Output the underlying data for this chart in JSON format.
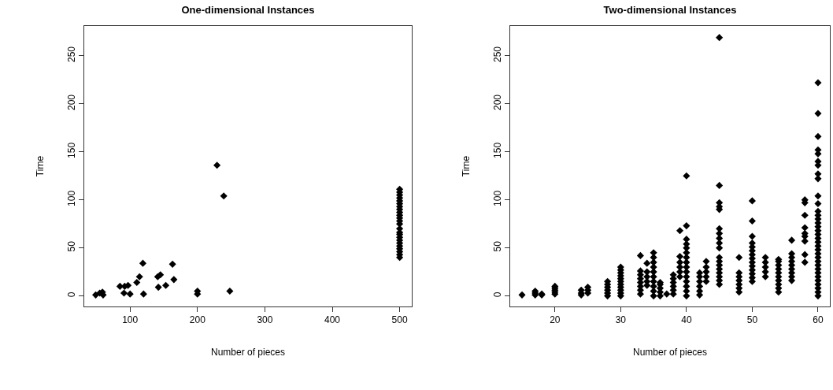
{
  "chart_data": [
    {
      "type": "scatter",
      "title": "One-dimensional Instances",
      "xlabel": "Number of pieces",
      "ylabel": "Time",
      "color": "#000000",
      "marker": "diamond",
      "grid": false,
      "xlim": [
        32,
        518
      ],
      "ylim": [
        -11,
        281
      ],
      "xticks": [
        100,
        200,
        300,
        400,
        500
      ],
      "yticks": [
        0,
        50,
        100,
        150,
        200,
        250
      ],
      "x": [
        49,
        55,
        59,
        60,
        85,
        92,
        97,
        91,
        100,
        110,
        114,
        119,
        120,
        141,
        145,
        142,
        153,
        163,
        165,
        200,
        200,
        229,
        239,
        248,
        500,
        500,
        500,
        500,
        500,
        500,
        500,
        500,
        500,
        500,
        500,
        500,
        500,
        500,
        500,
        500,
        500,
        500,
        500,
        500,
        500,
        500,
        500,
        500
      ],
      "values": [
        1,
        3,
        4,
        1,
        10,
        10,
        11,
        3,
        2,
        14,
        20,
        34,
        2,
        20,
        22,
        9,
        11,
        33,
        17,
        5,
        2,
        136,
        104,
        5,
        40,
        43,
        46,
        49,
        52,
        55,
        58,
        61,
        64,
        66,
        70,
        75,
        78,
        81,
        84,
        87,
        90,
        93,
        96,
        99,
        102,
        105,
        108,
        111
      ]
    },
    {
      "type": "scatter",
      "title": "Two-dimensional Instances",
      "xlabel": "Number of pieces",
      "ylabel": "Time",
      "color": "#000000",
      "marker": "diamond",
      "grid": false,
      "xlim": [
        13.2,
        61.8
      ],
      "ylim": [
        -11,
        281
      ],
      "xticks": [
        20,
        30,
        40,
        50,
        60
      ],
      "yticks": [
        0,
        50,
        100,
        150,
        200,
        250
      ],
      "x": [
        15,
        17,
        17,
        17,
        18,
        18,
        20,
        20,
        20,
        20,
        20,
        24,
        24,
        24,
        25,
        25,
        25,
        28,
        28,
        28,
        28,
        28,
        28,
        30,
        30,
        30,
        30,
        30,
        30,
        30,
        30,
        30,
        30,
        30,
        33,
        33,
        33,
        33,
        33,
        33,
        33,
        33,
        34,
        34,
        34,
        34,
        34,
        35,
        35,
        35,
        35,
        35,
        35,
        35,
        35,
        35,
        35,
        36,
        36,
        36,
        36,
        36,
        37,
        38,
        38,
        38,
        38,
        38,
        38,
        39,
        39,
        39,
        39,
        39,
        39,
        40,
        40,
        40,
        40,
        40,
        40,
        40,
        40,
        40,
        40,
        40,
        40,
        40,
        40,
        40,
        42,
        42,
        42,
        42,
        42,
        42,
        43,
        43,
        43,
        43,
        43,
        45,
        45,
        45,
        45,
        45,
        45,
        45,
        45,
        45,
        45,
        45,
        45,
        45,
        45,
        45,
        45,
        45,
        45,
        48,
        48,
        48,
        48,
        48,
        48,
        48,
        50,
        50,
        50,
        50,
        50,
        50,
        50,
        50,
        50,
        50,
        50,
        50,
        50,
        50,
        52,
        52,
        52,
        52,
        52,
        54,
        54,
        54,
        54,
        54,
        54,
        54,
        54,
        54,
        54,
        56,
        56,
        56,
        56,
        56,
        56,
        56,
        56,
        56,
        58,
        58,
        58,
        58,
        58,
        58,
        58,
        58,
        58,
        60,
        60,
        60,
        60,
        60,
        60,
        60,
        60,
        60,
        60,
        60,
        60,
        60,
        60,
        60,
        60,
        60,
        60,
        60,
        60,
        60,
        60,
        60,
        60,
        60,
        60,
        60,
        60,
        60,
        60,
        60,
        60,
        60,
        60
      ],
      "values": [
        1,
        1,
        3,
        5,
        1,
        2,
        2,
        4,
        6,
        8,
        10,
        1,
        3,
        6,
        3,
        6,
        9,
        0,
        3,
        6,
        9,
        12,
        15,
        0,
        3,
        6,
        9,
        12,
        15,
        18,
        21,
        24,
        27,
        30,
        2,
        6,
        10,
        14,
        18,
        22,
        26,
        42,
        11,
        15,
        20,
        25,
        34,
        0,
        5,
        10,
        15,
        20,
        25,
        30,
        35,
        40,
        45,
        0,
        4,
        8,
        12,
        14,
        2,
        2,
        6,
        10,
        14,
        18,
        22,
        20,
        25,
        30,
        35,
        41,
        68,
        0,
        5,
        10,
        15,
        20,
        25,
        30,
        35,
        40,
        45,
        50,
        54,
        59,
        73,
        125,
        1,
        5,
        10,
        15,
        20,
        24,
        15,
        20,
        25,
        30,
        36,
        12,
        16,
        20,
        24,
        28,
        32,
        36,
        40,
        50,
        55,
        60,
        65,
        70,
        90,
        93,
        97,
        115,
        269,
        4,
        8,
        12,
        16,
        20,
        24,
        40,
        15,
        19,
        23,
        27,
        31,
        35,
        39,
        43,
        47,
        51,
        55,
        62,
        78,
        99,
        20,
        25,
        30,
        35,
        40,
        4,
        8,
        12,
        16,
        20,
        24,
        28,
        32,
        36,
        38,
        16,
        20,
        24,
        28,
        32,
        36,
        40,
        44,
        58,
        35,
        43,
        57,
        62,
        65,
        71,
        84,
        97,
        100,
        0,
        4,
        8,
        12,
        16,
        20,
        24,
        28,
        32,
        36,
        40,
        44,
        48,
        52,
        56,
        60,
        64,
        68,
        72,
        76,
        80,
        84,
        88,
        96,
        104,
        122,
        127,
        136,
        140,
        148,
        152,
        166,
        190,
        222
      ]
    }
  ]
}
